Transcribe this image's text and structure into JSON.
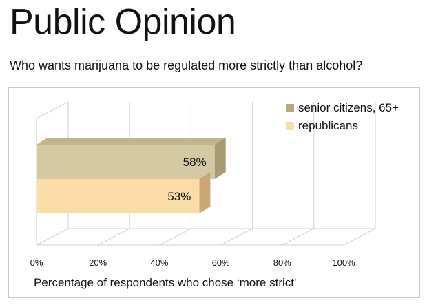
{
  "header": {
    "title": "Public Opinion",
    "subtitle": "Who wants marijuana to be regulated more strictly than alcohol?"
  },
  "chart_data": {
    "type": "bar",
    "orientation": "horizontal",
    "style": "3d",
    "title": "Who wants marijuana to be regulated more strictly than alcohol?",
    "xlabel": "Percentage of respondents who chose ‘more strict'",
    "ylabel": "",
    "xlim": [
      0,
      100
    ],
    "xticks": [
      0,
      20,
      40,
      60,
      80,
      100
    ],
    "tick_labels": [
      "0%",
      "20%",
      "40%",
      "60%",
      "80%",
      "100%"
    ],
    "grid": true,
    "legend_position": "top-right",
    "series": [
      {
        "name": "senior citizens, 65+",
        "value": 58,
        "label": "58%",
        "color": "#d4c9a3",
        "side_color": "#a89b72",
        "top_color": "#c2b68c"
      },
      {
        "name": "republicans",
        "value": 53,
        "label": "53%",
        "color": "#fcdca6",
        "side_color": "#c9a773",
        "top_color": "#e8c78e"
      }
    ]
  }
}
